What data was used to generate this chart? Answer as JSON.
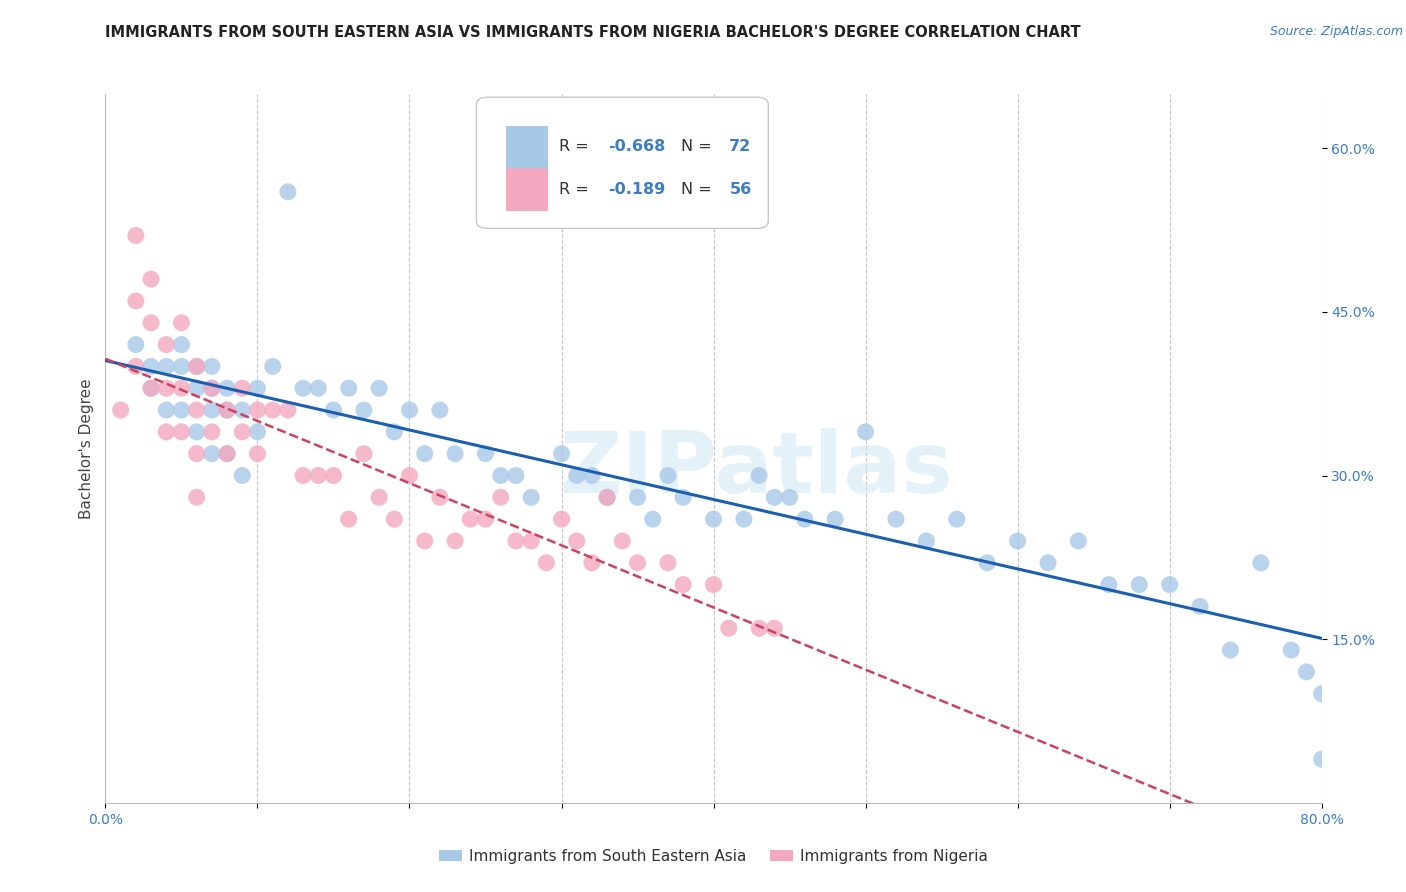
{
  "title": "IMMIGRANTS FROM SOUTH EASTERN ASIA VS IMMIGRANTS FROM NIGERIA BACHELOR'S DEGREE CORRELATION CHART",
  "source": "Source: ZipAtlas.com",
  "ylabel": "Bachelor's Degree",
  "x_min": 0.0,
  "x_max": 0.8,
  "y_min": 0.0,
  "y_max": 0.65,
  "legend1_R": "-0.668",
  "legend1_N": "72",
  "legend2_R": "-0.189",
  "legend2_N": "56",
  "color_sea": "#a8c8e8",
  "color_nga": "#f4a8c0",
  "line_color_sea": "#1a5fb0",
  "line_color_nga": "#d04060",
  "watermark": "ZIPatlas",
  "background_color": "#ffffff",
  "grid_color": "#c8c8c8",
  "sea_label": "Immigrants from South Eastern Asia",
  "nga_label": "Immigrants from Nigeria",
  "sea_x": [
    0.02,
    0.03,
    0.03,
    0.04,
    0.04,
    0.05,
    0.05,
    0.05,
    0.06,
    0.06,
    0.06,
    0.07,
    0.07,
    0.07,
    0.07,
    0.08,
    0.08,
    0.08,
    0.09,
    0.09,
    0.1,
    0.1,
    0.11,
    0.12,
    0.13,
    0.14,
    0.15,
    0.16,
    0.17,
    0.18,
    0.19,
    0.2,
    0.21,
    0.22,
    0.23,
    0.25,
    0.26,
    0.27,
    0.28,
    0.3,
    0.31,
    0.32,
    0.33,
    0.35,
    0.36,
    0.37,
    0.38,
    0.4,
    0.42,
    0.43,
    0.44,
    0.45,
    0.46,
    0.48,
    0.5,
    0.52,
    0.54,
    0.56,
    0.58,
    0.6,
    0.62,
    0.64,
    0.66,
    0.68,
    0.7,
    0.72,
    0.74,
    0.76,
    0.78,
    0.79,
    0.8,
    0.8
  ],
  "sea_y": [
    0.42,
    0.4,
    0.38,
    0.4,
    0.36,
    0.42,
    0.4,
    0.36,
    0.4,
    0.38,
    0.34,
    0.4,
    0.38,
    0.36,
    0.32,
    0.38,
    0.36,
    0.32,
    0.36,
    0.3,
    0.38,
    0.34,
    0.4,
    0.56,
    0.38,
    0.38,
    0.36,
    0.38,
    0.36,
    0.38,
    0.34,
    0.36,
    0.32,
    0.36,
    0.32,
    0.32,
    0.3,
    0.3,
    0.28,
    0.32,
    0.3,
    0.3,
    0.28,
    0.28,
    0.26,
    0.3,
    0.28,
    0.26,
    0.26,
    0.3,
    0.28,
    0.28,
    0.26,
    0.26,
    0.34,
    0.26,
    0.24,
    0.26,
    0.22,
    0.24,
    0.22,
    0.24,
    0.2,
    0.2,
    0.2,
    0.18,
    0.14,
    0.22,
    0.14,
    0.12,
    0.1,
    0.04
  ],
  "nga_x": [
    0.01,
    0.02,
    0.02,
    0.02,
    0.03,
    0.03,
    0.03,
    0.04,
    0.04,
    0.04,
    0.05,
    0.05,
    0.05,
    0.06,
    0.06,
    0.06,
    0.06,
    0.07,
    0.07,
    0.08,
    0.08,
    0.09,
    0.09,
    0.1,
    0.1,
    0.11,
    0.12,
    0.13,
    0.14,
    0.15,
    0.16,
    0.17,
    0.18,
    0.19,
    0.2,
    0.21,
    0.22,
    0.23,
    0.24,
    0.25,
    0.26,
    0.27,
    0.28,
    0.29,
    0.3,
    0.31,
    0.32,
    0.33,
    0.34,
    0.35,
    0.37,
    0.38,
    0.4,
    0.41,
    0.43,
    0.44
  ],
  "nga_y": [
    0.36,
    0.52,
    0.46,
    0.4,
    0.48,
    0.44,
    0.38,
    0.42,
    0.38,
    0.34,
    0.44,
    0.38,
    0.34,
    0.4,
    0.36,
    0.32,
    0.28,
    0.38,
    0.34,
    0.36,
    0.32,
    0.38,
    0.34,
    0.36,
    0.32,
    0.36,
    0.36,
    0.3,
    0.3,
    0.3,
    0.26,
    0.32,
    0.28,
    0.26,
    0.3,
    0.24,
    0.28,
    0.24,
    0.26,
    0.26,
    0.28,
    0.24,
    0.24,
    0.22,
    0.26,
    0.24,
    0.22,
    0.28,
    0.24,
    0.22,
    0.22,
    0.2,
    0.2,
    0.16,
    0.16,
    0.16
  ]
}
